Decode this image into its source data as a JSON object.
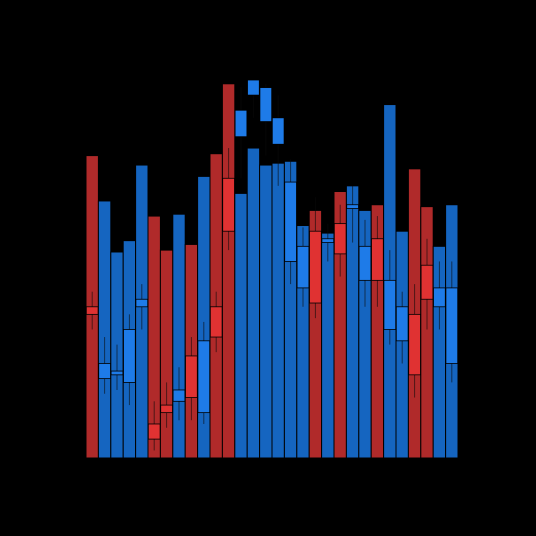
{
  "chart_data": {
    "type": "bar",
    "title": "",
    "xlabel": "",
    "ylabel": "",
    "ylim": [
      0,
      100
    ],
    "grid": false,
    "legend": "none",
    "colors": {
      "background": "#000000",
      "blue_bar": "#1565C0",
      "red_bar": "#B02A2A",
      "blue_candle": "#1E7BE8",
      "red_candle": "#E03232",
      "bar_edge": "#000000"
    },
    "bars": [
      {
        "value": 80,
        "color": "red"
      },
      {
        "value": 68,
        "color": "blue"
      },
      {
        "value": 54.5,
        "color": "blue"
      },
      {
        "value": 57.5,
        "color": "blue"
      },
      {
        "value": 77.5,
        "color": "blue"
      },
      {
        "value": 64,
        "color": "red"
      },
      {
        "value": 55,
        "color": "red"
      },
      {
        "value": 64.5,
        "color": "blue"
      },
      {
        "value": 56.5,
        "color": "red"
      },
      {
        "value": 74.5,
        "color": "blue"
      },
      {
        "value": 80.5,
        "color": "red"
      },
      {
        "value": 99,
        "color": "red"
      },
      {
        "value": 70,
        "color": "blue"
      },
      {
        "value": 82,
        "color": "blue"
      },
      {
        "value": 77.5,
        "color": "blue"
      },
      {
        "value": 78,
        "color": "blue"
      },
      {
        "value": 78.5,
        "color": "blue"
      },
      {
        "value": 61.5,
        "color": "blue"
      },
      {
        "value": 65.5,
        "color": "red"
      },
      {
        "value": 59.5,
        "color": "blue"
      },
      {
        "value": 70.5,
        "color": "red"
      },
      {
        "value": 72,
        "color": "blue"
      },
      {
        "value": 65.5,
        "color": "blue"
      },
      {
        "value": 67,
        "color": "red"
      },
      {
        "value": 93.5,
        "color": "blue"
      },
      {
        "value": 60,
        "color": "blue"
      },
      {
        "value": 76.5,
        "color": "red"
      },
      {
        "value": 66.5,
        "color": "red"
      },
      {
        "value": 56,
        "color": "blue"
      },
      {
        "value": 67,
        "color": "blue"
      }
    ],
    "candles": [
      {
        "open": 38,
        "close": 40,
        "high": 44,
        "low": 34,
        "color": "red"
      },
      {
        "open": 21,
        "close": 25,
        "high": 32,
        "low": 17,
        "color": "blue"
      },
      {
        "open": 22,
        "close": 23,
        "high": 30,
        "low": 18,
        "color": "blue"
      },
      {
        "open": 20,
        "close": 34,
        "high": 38,
        "low": 14,
        "color": "blue"
      },
      {
        "open": 40,
        "close": 42,
        "high": 46,
        "low": 34,
        "color": "blue"
      },
      {
        "open": 5,
        "close": 9,
        "high": 15,
        "low": 2,
        "color": "red"
      },
      {
        "open": 12,
        "close": 14,
        "high": 20,
        "low": 8,
        "color": "red"
      },
      {
        "open": 15,
        "close": 18,
        "high": 24,
        "low": 10,
        "color": "blue"
      },
      {
        "open": 16,
        "close": 27,
        "high": 32,
        "low": 10,
        "color": "red"
      },
      {
        "open": 12,
        "close": 31,
        "high": 36,
        "low": 9,
        "color": "blue"
      },
      {
        "open": 32,
        "close": 40,
        "high": 44,
        "low": 28,
        "color": "red"
      },
      {
        "open": 60,
        "close": 74,
        "high": 82,
        "low": 55,
        "color": "red"
      },
      {
        "open": 85,
        "close": 92,
        "high": 98,
        "low": 74,
        "color": "blue"
      },
      {
        "open": 96,
        "close": 100,
        "high": 100,
        "low": 90,
        "color": "blue"
      },
      {
        "open": 89,
        "close": 98,
        "high": 99,
        "low": 80,
        "color": "blue"
      },
      {
        "open": 83,
        "close": 90,
        "high": 96,
        "low": 72,
        "color": "blue"
      },
      {
        "open": 52,
        "close": 73,
        "high": 79,
        "low": 46,
        "color": "blue"
      },
      {
        "open": 45,
        "close": 56,
        "high": 61,
        "low": 40,
        "color": "blue"
      },
      {
        "open": 41,
        "close": 60,
        "high": 69,
        "low": 37,
        "color": "red"
      },
      {
        "open": 57,
        "close": 58,
        "high": 62,
        "low": 52,
        "color": "blue"
      },
      {
        "open": 54,
        "close": 62,
        "high": 67,
        "low": 48,
        "color": "red"
      },
      {
        "open": 66,
        "close": 67,
        "high": 72,
        "low": 57,
        "color": "blue"
      },
      {
        "open": 47,
        "close": 56,
        "high": 63,
        "low": 40,
        "color": "blue"
      },
      {
        "open": 47,
        "close": 58,
        "high": 64,
        "low": 40,
        "color": "red"
      },
      {
        "open": 34,
        "close": 47,
        "high": 55,
        "low": 30,
        "color": "blue"
      },
      {
        "open": 31,
        "close": 40,
        "high": 44,
        "low": 25,
        "color": "blue"
      },
      {
        "open": 22,
        "close": 38,
        "high": 46,
        "low": 16,
        "color": "red"
      },
      {
        "open": 42,
        "close": 51,
        "high": 58,
        "low": 34,
        "color": "red"
      },
      {
        "open": 40,
        "close": 45,
        "high": 52,
        "low": 34,
        "color": "blue"
      },
      {
        "open": 25,
        "close": 45,
        "high": 52,
        "low": 20,
        "color": "blue"
      }
    ]
  }
}
